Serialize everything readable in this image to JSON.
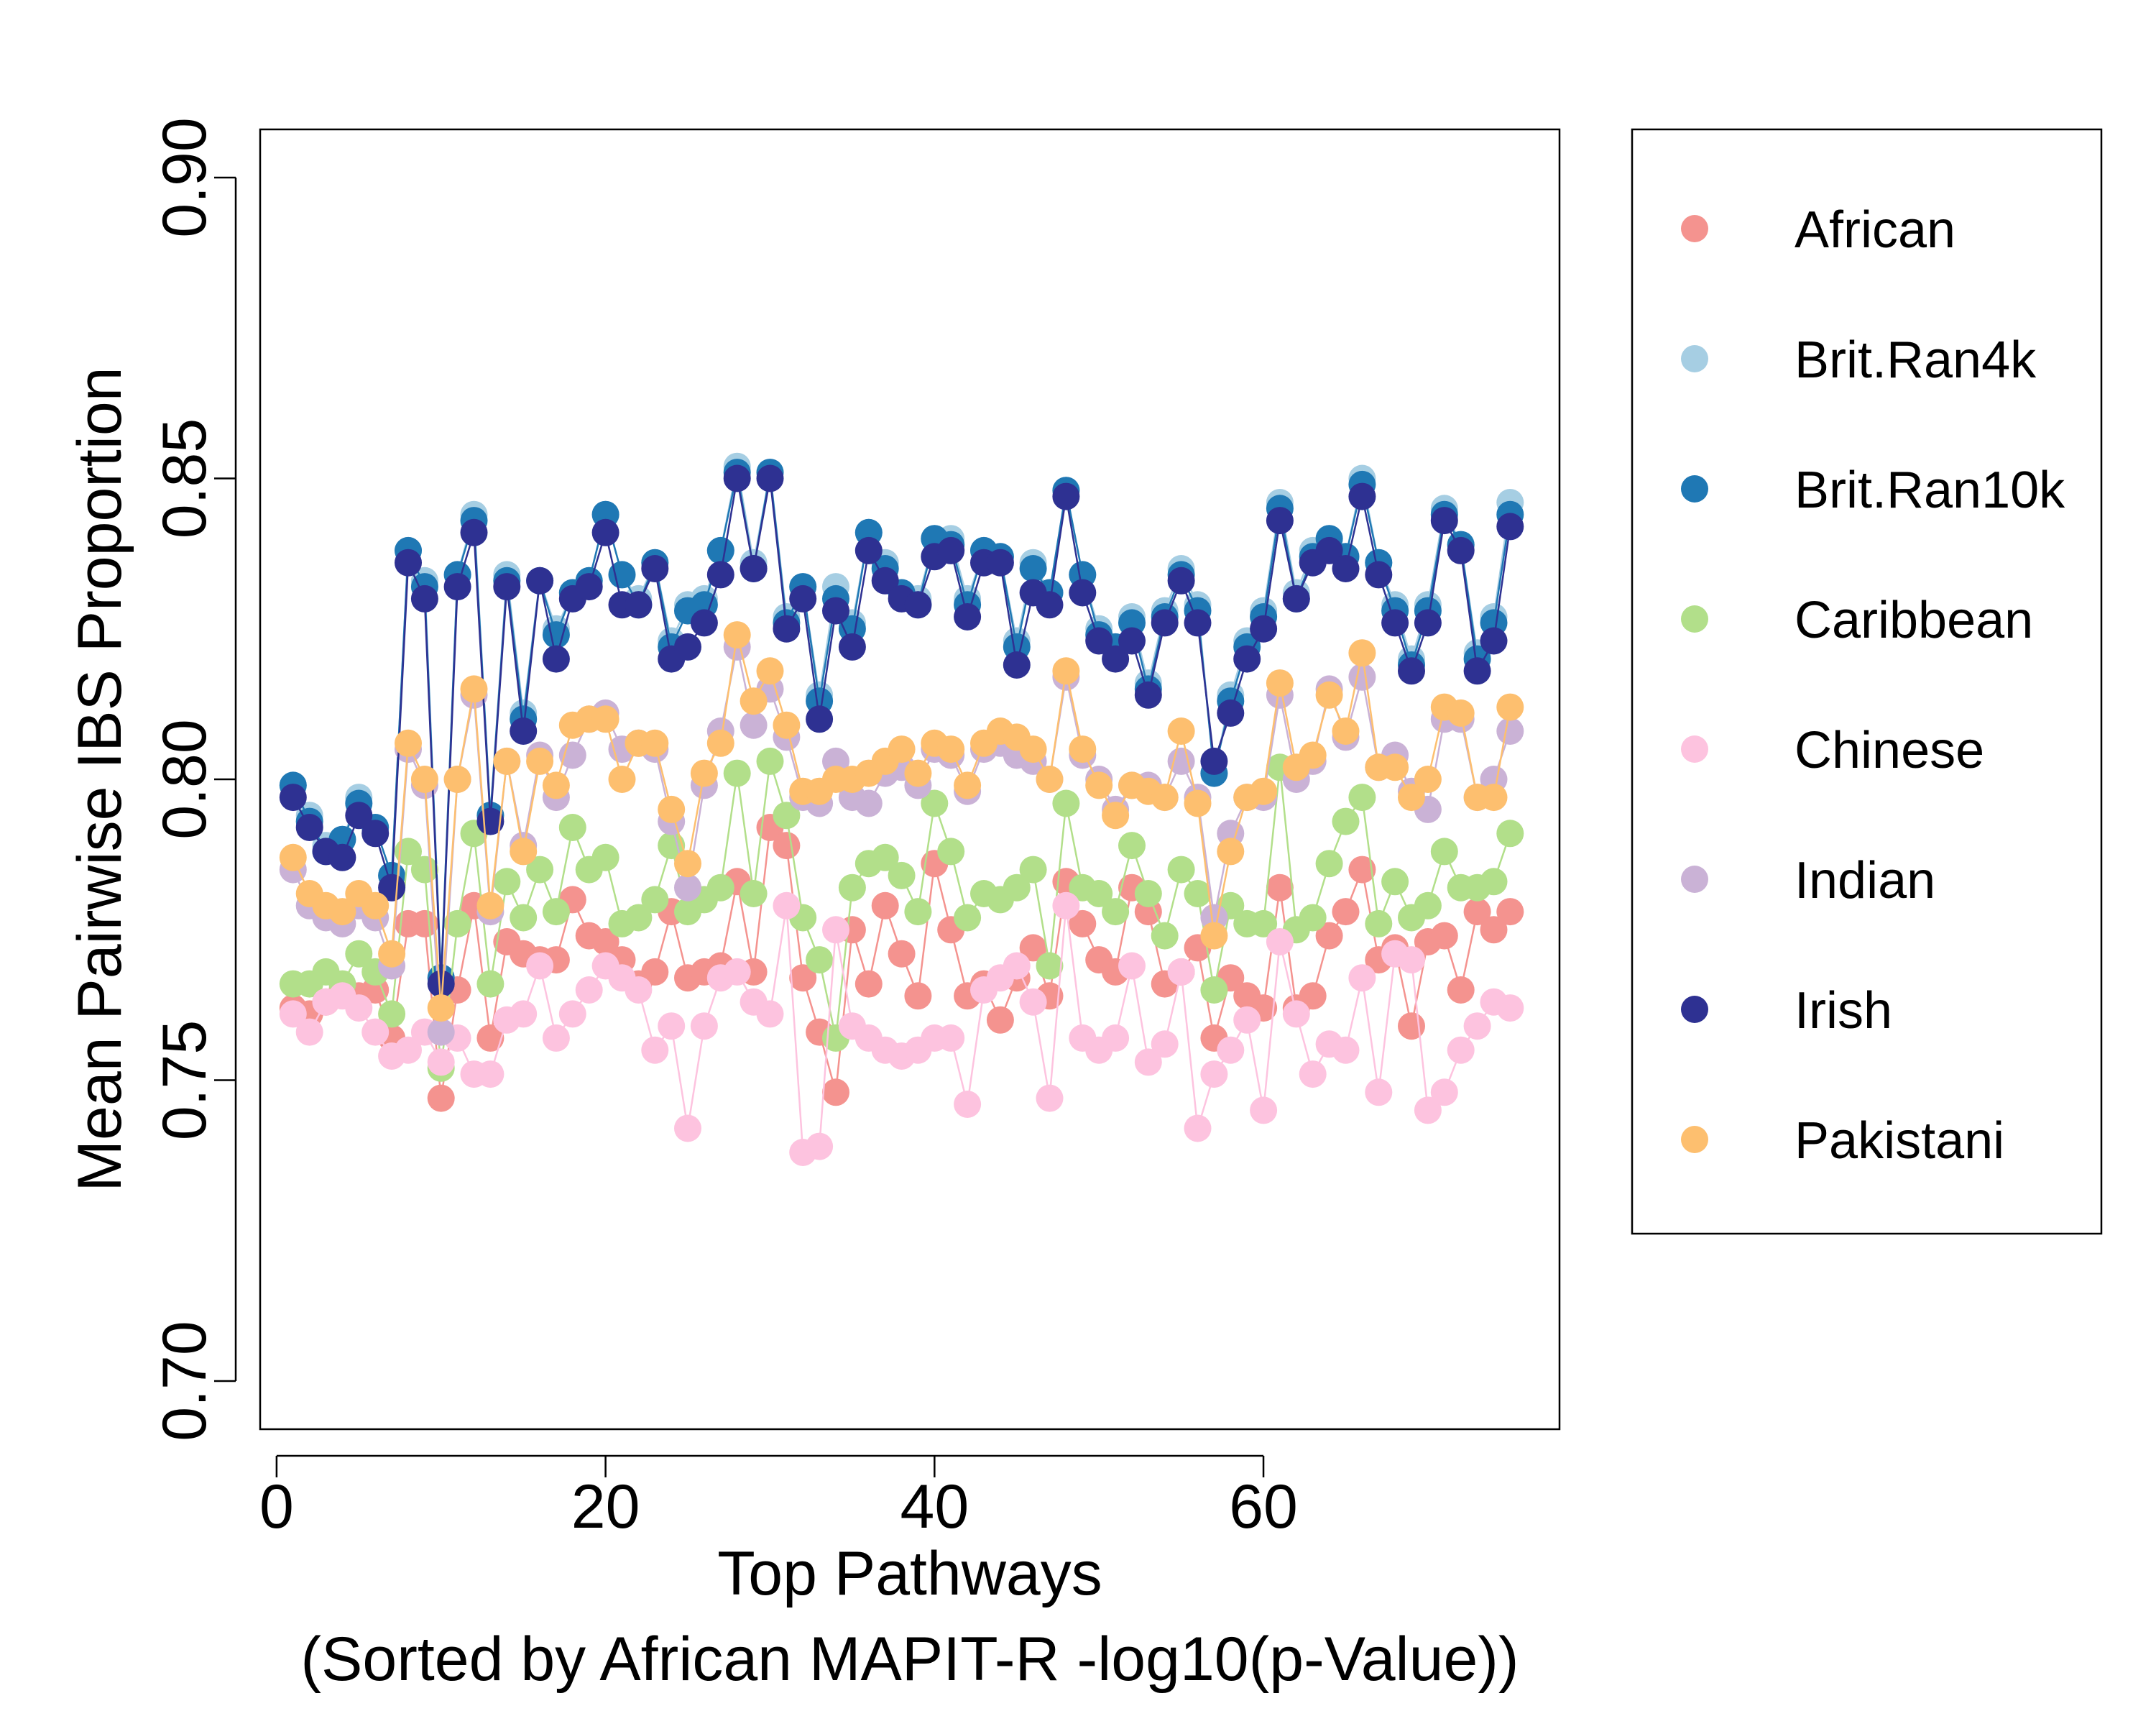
{
  "chart_data": {
    "type": "scatter",
    "mode": "lines+markers",
    "xlabel": "Top Pathways",
    "xlabel_sub": "(Sorted by African MAPIT-R -log10(p-Value))",
    "ylabel": "Mean Pairwise IBS Proportion",
    "xlim": [
      -1,
      78
    ],
    "ylim": [
      0.692,
      0.908
    ],
    "xticks": [
      0,
      20,
      40,
      60
    ],
    "xtick_labels": [
      "0",
      "20",
      "40",
      "60"
    ],
    "yticks": [
      0.7,
      0.75,
      0.8,
      0.85,
      0.9
    ],
    "ytick_labels": [
      "0.70",
      "0.75",
      "0.80",
      "0.85",
      "0.90"
    ],
    "grid": false,
    "legend_position": "right, outside plot",
    "x": [
      1,
      2,
      3,
      4,
      5,
      6,
      7,
      8,
      9,
      10,
      11,
      12,
      13,
      14,
      15,
      16,
      17,
      18,
      19,
      20,
      21,
      22,
      23,
      24,
      25,
      26,
      27,
      28,
      29,
      30,
      31,
      32,
      33,
      34,
      35,
      36,
      37,
      38,
      39,
      40,
      41,
      42,
      43,
      44,
      45,
      46,
      47,
      48,
      49,
      50,
      51,
      52,
      53,
      54,
      55,
      56,
      57,
      58,
      59,
      60,
      61,
      62,
      63,
      64,
      65,
      66,
      67,
      68,
      69,
      70,
      71,
      72,
      73,
      74,
      75
    ],
    "series": [
      {
        "name": "African",
        "color": "#F4938F",
        "values": [
          0.762,
          0.761,
          0.763,
          0.765,
          0.764,
          0.765,
          0.757,
          0.776,
          0.776,
          0.747,
          0.765,
          0.779,
          0.757,
          0.773,
          0.771,
          0.77,
          0.77,
          0.78,
          0.774,
          0.773,
          0.77,
          0.766,
          0.768,
          0.778,
          0.767,
          0.768,
          0.769,
          0.783,
          0.768,
          0.792,
          0.789,
          0.767,
          0.758,
          0.748,
          0.775,
          0.766,
          0.779,
          0.771,
          0.764,
          0.786,
          0.775,
          0.764,
          0.766,
          0.76,
          0.767,
          0.772,
          0.764,
          0.783,
          0.776,
          0.77,
          0.768,
          0.782,
          0.778,
          0.766,
          0.768,
          0.772,
          0.757,
          0.767,
          0.764,
          0.762,
          0.782,
          0.762,
          0.764,
          0.774,
          0.778,
          0.785,
          0.77,
          0.772,
          0.759,
          0.773,
          0.774,
          0.765,
          0.778,
          0.775,
          0.778
        ]
      },
      {
        "name": "Brit.Ran4k",
        "color": "#A6CEE3",
        "values": [
          0.799,
          0.794,
          0.789,
          0.79,
          0.797,
          0.792,
          0.784,
          0.838,
          0.833,
          0.767,
          0.834,
          0.844,
          0.794,
          0.834,
          0.811,
          0.833,
          0.825,
          0.831,
          0.833,
          0.844,
          0.834,
          0.83,
          0.836,
          0.823,
          0.829,
          0.83,
          0.838,
          0.852,
          0.836,
          0.851,
          0.827,
          0.832,
          0.814,
          0.832,
          0.826,
          0.841,
          0.836,
          0.831,
          0.83,
          0.84,
          0.84,
          0.83,
          0.838,
          0.837,
          0.823,
          0.836,
          0.831,
          0.848,
          0.834,
          0.825,
          0.822,
          0.827,
          0.816,
          0.828,
          0.835,
          0.829,
          0.801,
          0.814,
          0.823,
          0.828,
          0.846,
          0.831,
          0.838,
          0.84,
          0.837,
          0.85,
          0.836,
          0.829,
          0.82,
          0.829,
          0.845,
          0.839,
          0.821,
          0.827,
          0.846
        ]
      },
      {
        "name": "Brit.Ran10k",
        "color": "#1F78B4",
        "values": [
          0.799,
          0.793,
          0.788,
          0.79,
          0.796,
          0.792,
          0.784,
          0.838,
          0.832,
          0.767,
          0.834,
          0.843,
          0.794,
          0.833,
          0.81,
          0.833,
          0.824,
          0.831,
          0.833,
          0.844,
          0.834,
          0.829,
          0.836,
          0.822,
          0.828,
          0.829,
          0.838,
          0.851,
          0.835,
          0.851,
          0.826,
          0.832,
          0.813,
          0.83,
          0.825,
          0.841,
          0.835,
          0.831,
          0.829,
          0.84,
          0.839,
          0.829,
          0.838,
          0.837,
          0.822,
          0.835,
          0.831,
          0.848,
          0.834,
          0.824,
          0.822,
          0.826,
          0.815,
          0.827,
          0.834,
          0.828,
          0.801,
          0.813,
          0.822,
          0.827,
          0.845,
          0.83,
          0.837,
          0.84,
          0.837,
          0.849,
          0.836,
          0.828,
          0.819,
          0.828,
          0.844,
          0.839,
          0.82,
          0.826,
          0.844
        ]
      },
      {
        "name": "Caribbean",
        "color": "#B2DF8A",
        "values": [
          0.766,
          0.766,
          0.768,
          0.766,
          0.771,
          0.768,
          0.761,
          0.788,
          0.785,
          0.752,
          0.776,
          0.791,
          0.766,
          0.783,
          0.777,
          0.785,
          0.778,
          0.792,
          0.785,
          0.787,
          0.776,
          0.777,
          0.78,
          0.789,
          0.778,
          0.78,
          0.782,
          0.801,
          0.781,
          0.803,
          0.794,
          0.777,
          0.77,
          0.757,
          0.782,
          0.786,
          0.787,
          0.784,
          0.778,
          0.796,
          0.788,
          0.777,
          0.781,
          0.78,
          0.782,
          0.785,
          0.769,
          0.796,
          0.782,
          0.781,
          0.778,
          0.789,
          0.781,
          0.774,
          0.785,
          0.781,
          0.765,
          0.779,
          0.776,
          0.776,
          0.802,
          0.775,
          0.777,
          0.786,
          0.793,
          0.797,
          0.776,
          0.783,
          0.777,
          0.779,
          0.788,
          0.782,
          0.782,
          0.783,
          0.791
        ]
      },
      {
        "name": "Chinese",
        "color": "#FDC3DF",
        "values": [
          0.761,
          0.758,
          0.763,
          0.764,
          0.762,
          0.758,
          0.754,
          0.755,
          0.758,
          0.753,
          0.757,
          0.751,
          0.751,
          0.76,
          0.761,
          0.769,
          0.757,
          0.761,
          0.765,
          0.769,
          0.767,
          0.765,
          0.755,
          0.759,
          0.742,
          0.759,
          0.767,
          0.768,
          0.763,
          0.761,
          0.779,
          0.738,
          0.739,
          0.775,
          0.759,
          0.757,
          0.755,
          0.754,
          0.755,
          0.757,
          0.757,
          0.746,
          0.765,
          0.767,
          0.769,
          0.763,
          0.747,
          0.779,
          0.757,
          0.755,
          0.757,
          0.769,
          0.753,
          0.756,
          0.768,
          0.742,
          0.751,
          0.755,
          0.76,
          0.745,
          0.773,
          0.761,
          0.751,
          0.756,
          0.755,
          0.767,
          0.748,
          0.771,
          0.77,
          0.745,
          0.748,
          0.755,
          0.759,
          0.763,
          0.762
        ]
      },
      {
        "name": "Indian",
        "color": "#CAB2D6",
        "values": [
          0.785,
          0.779,
          0.777,
          0.776,
          0.779,
          0.777,
          0.769,
          0.805,
          0.799,
          0.758,
          0.8,
          0.814,
          0.778,
          0.803,
          0.789,
          0.804,
          0.797,
          0.804,
          0.81,
          0.811,
          0.805,
          0.806,
          0.805,
          0.793,
          0.782,
          0.799,
          0.808,
          0.822,
          0.809,
          0.815,
          0.807,
          0.797,
          0.796,
          0.803,
          0.797,
          0.796,
          0.801,
          0.802,
          0.799,
          0.805,
          0.804,
          0.798,
          0.805,
          0.806,
          0.804,
          0.803,
          0.8,
          0.817,
          0.804,
          0.8,
          0.795,
          0.799,
          0.799,
          0.797,
          0.803,
          0.797,
          0.777,
          0.791,
          0.797,
          0.797,
          0.814,
          0.8,
          0.803,
          0.815,
          0.807,
          0.817,
          0.802,
          0.804,
          0.798,
          0.795,
          0.81,
          0.81,
          0.797,
          0.8,
          0.808
        ]
      },
      {
        "name": "Irish",
        "color": "#2E3192",
        "values": [
          0.797,
          0.792,
          0.788,
          0.787,
          0.794,
          0.791,
          0.782,
          0.836,
          0.83,
          0.766,
          0.832,
          0.841,
          0.793,
          0.832,
          0.808,
          0.833,
          0.82,
          0.83,
          0.832,
          0.841,
          0.829,
          0.829,
          0.835,
          0.82,
          0.822,
          0.826,
          0.834,
          0.85,
          0.835,
          0.85,
          0.825,
          0.83,
          0.81,
          0.828,
          0.822,
          0.838,
          0.833,
          0.83,
          0.829,
          0.837,
          0.838,
          0.827,
          0.836,
          0.836,
          0.819,
          0.831,
          0.829,
          0.847,
          0.831,
          0.823,
          0.82,
          0.823,
          0.814,
          0.826,
          0.833,
          0.826,
          0.803,
          0.811,
          0.82,
          0.825,
          0.843,
          0.83,
          0.836,
          0.838,
          0.835,
          0.847,
          0.834,
          0.826,
          0.818,
          0.826,
          0.843,
          0.838,
          0.818,
          0.823,
          0.842
        ]
      },
      {
        "name": "Pakistani",
        "color": "#FDBF6F",
        "values": [
          0.787,
          0.781,
          0.779,
          0.778,
          0.781,
          0.779,
          0.771,
          0.806,
          0.8,
          0.762,
          0.8,
          0.815,
          0.779,
          0.803,
          0.788,
          0.803,
          0.799,
          0.809,
          0.81,
          0.81,
          0.8,
          0.806,
          0.806,
          0.795,
          0.786,
          0.801,
          0.806,
          0.824,
          0.813,
          0.818,
          0.809,
          0.798,
          0.798,
          0.8,
          0.8,
          0.801,
          0.803,
          0.805,
          0.801,
          0.806,
          0.805,
          0.799,
          0.806,
          0.808,
          0.807,
          0.805,
          0.8,
          0.818,
          0.805,
          0.799,
          0.794,
          0.799,
          0.798,
          0.797,
          0.808,
          0.796,
          0.774,
          0.788,
          0.797,
          0.798,
          0.816,
          0.802,
          0.804,
          0.814,
          0.808,
          0.821,
          0.802,
          0.802,
          0.797,
          0.8,
          0.812,
          0.811,
          0.797,
          0.797,
          0.812
        ]
      }
    ]
  }
}
